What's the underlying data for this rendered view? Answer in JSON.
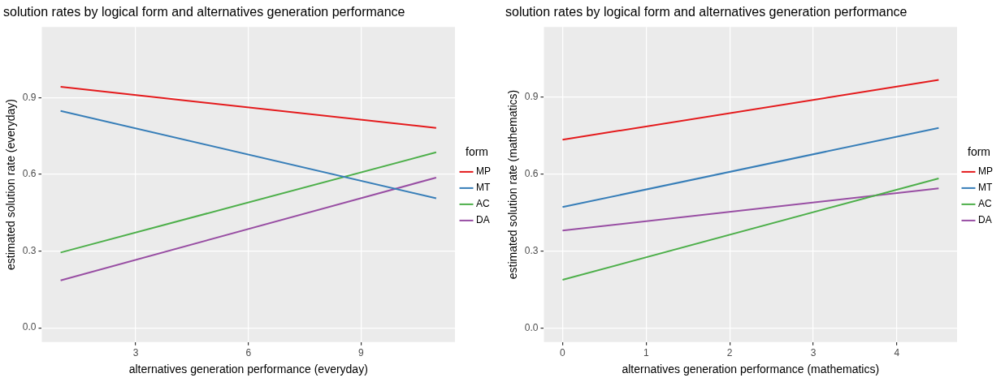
{
  "chart_data": [
    {
      "type": "line",
      "title": "solution rates by logical form and alternatives generation performance",
      "xlabel": "alternatives generation performance (everyday)",
      "ylabel": "estimated solution rate (everyday)",
      "legend_title": "form",
      "legend": "right",
      "grid": true,
      "line_style": "solid",
      "xlim": [
        0.5,
        11.5
      ],
      "xticks": [
        3,
        6,
        9
      ],
      "ylim": [
        -0.056,
        1.176
      ],
      "yticks": [
        {
          "value": 0,
          "label": "0.0"
        },
        0.3,
        0.6,
        0.9
      ],
      "x": [
        1,
        11
      ],
      "series": [
        {
          "name": "MP",
          "color": "#e41a1c",
          "values": [
            0.942,
            0.781
          ]
        },
        {
          "name": "MT",
          "color": "#377eb8",
          "values": [
            0.848,
            0.506
          ]
        },
        {
          "name": "AC",
          "color": "#4daf4a",
          "values": [
            0.294,
            0.686
          ]
        },
        {
          "name": "DA",
          "color": "#984ea3",
          "values": [
            0.185,
            0.587
          ]
        }
      ]
    },
    {
      "type": "line",
      "title": "solution rates by logical form and alternatives generation performance",
      "xlabel": "alternatives generation performance (mathematics)",
      "ylabel": "estimated solution rate (mathematics)",
      "legend_title": "form",
      "legend": "right",
      "grid": true,
      "line_style": "solid",
      "xlim": [
        -0.223,
        4.72
      ],
      "xticks": [
        0,
        1,
        2,
        3,
        4
      ],
      "ylim": [
        -0.055,
        1.175
      ],
      "yticks": [
        {
          "value": 0,
          "label": "0.0"
        },
        0.3,
        0.6,
        0.9
      ],
      "x": [
        0,
        4.5
      ],
      "series": [
        {
          "name": "MP",
          "color": "#e41a1c",
          "values": [
            0.735,
            0.968
          ]
        },
        {
          "name": "MT",
          "color": "#377eb8",
          "values": [
            0.472,
            0.781
          ]
        },
        {
          "name": "AC",
          "color": "#4daf4a",
          "values": [
            0.188,
            0.584
          ]
        },
        {
          "name": "DA",
          "color": "#984ea3",
          "values": [
            0.38,
            0.545
          ]
        }
      ]
    }
  ]
}
